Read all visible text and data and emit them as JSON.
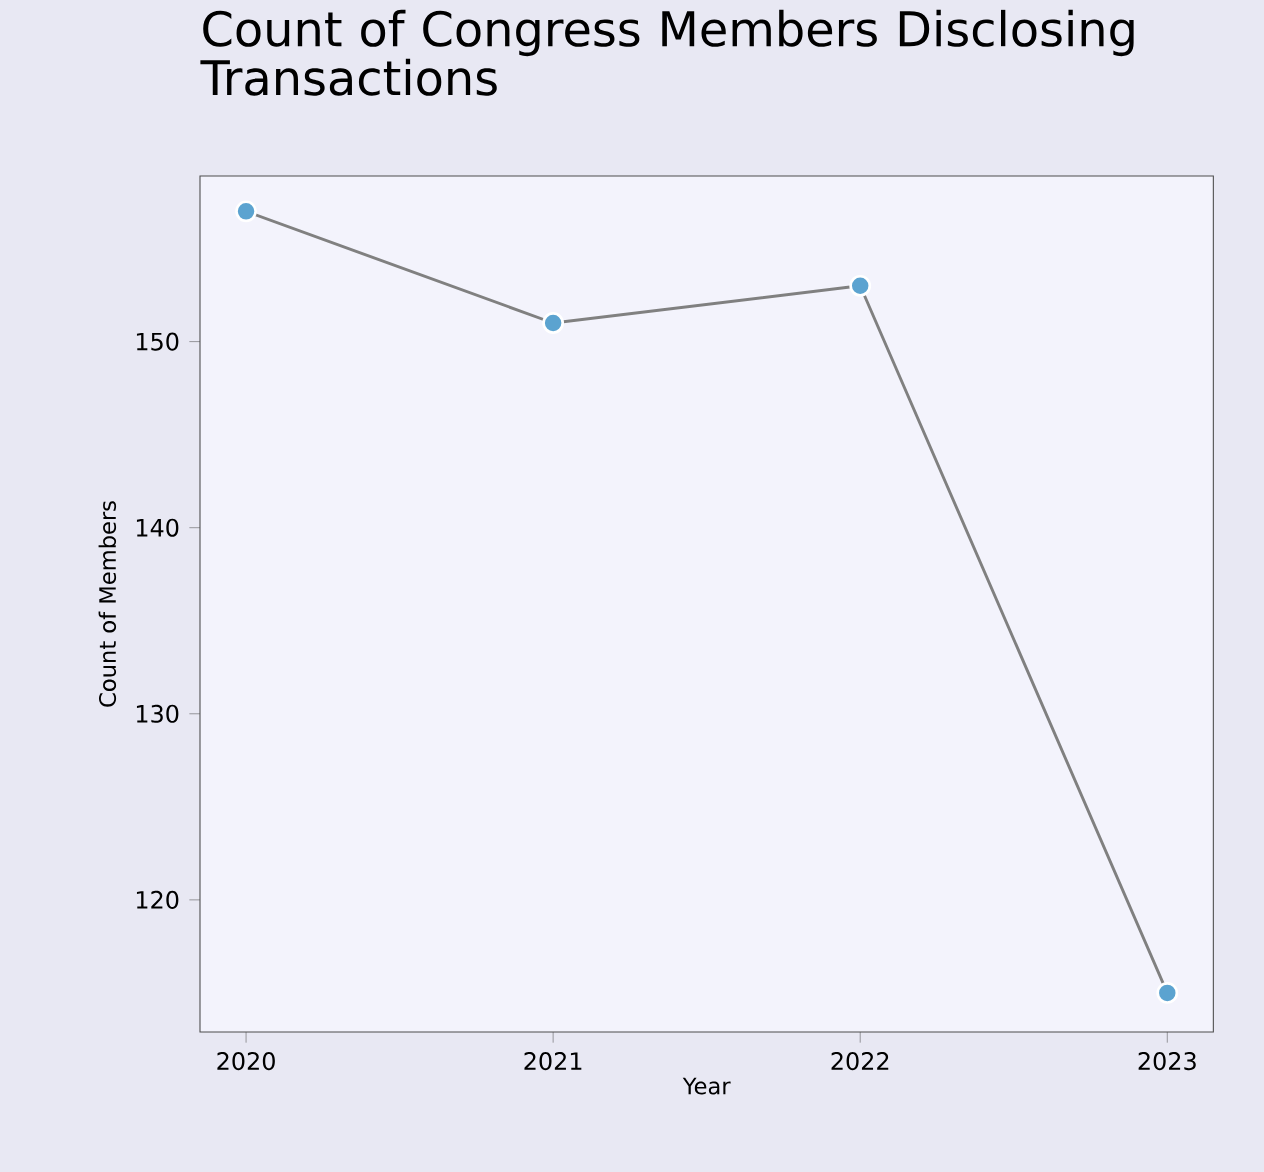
{
  "chart_data": {
    "type": "line",
    "title": "Count of Congress Members Disclosing Transactions",
    "xlabel": "Year",
    "ylabel": "Count of Members",
    "x": [
      2020,
      2021,
      2022,
      2023
    ],
    "series": [
      {
        "color": "#5ba3d0",
        "values": [
          157,
          151,
          153,
          115
        ]
      }
    ],
    "xlim": [
      2019.85,
      2023.15
    ],
    "ylim": [
      112.9,
      158.9
    ],
    "xticks": [
      2020,
      2021,
      2022,
      2023
    ],
    "yticks": [
      120,
      130,
      140,
      150
    ],
    "marker": "circle",
    "line_style": "solid"
  }
}
